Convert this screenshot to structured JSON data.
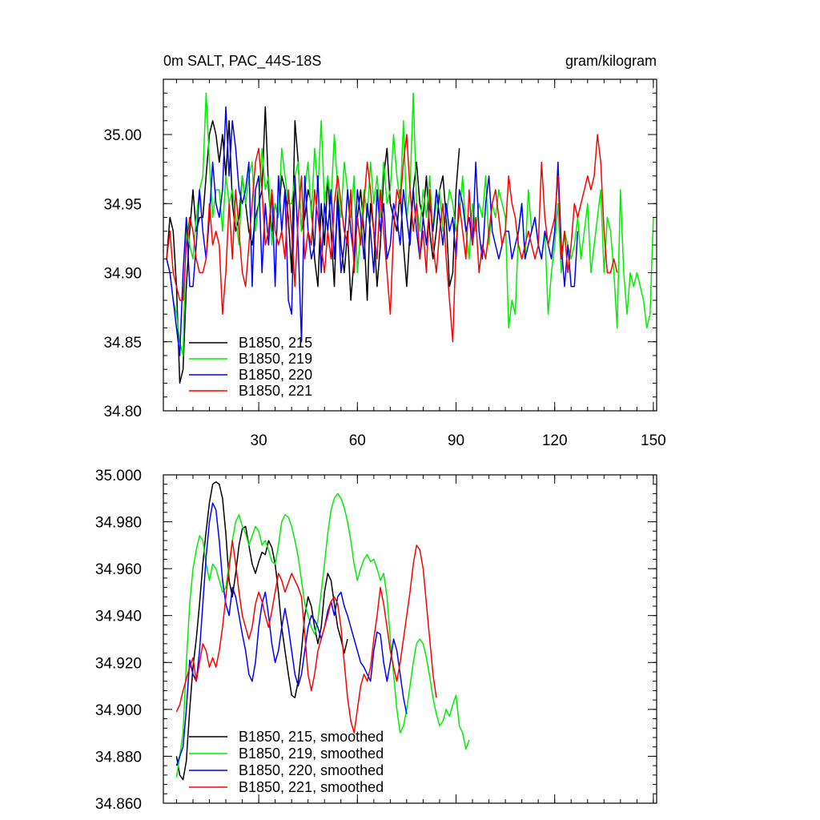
{
  "chart_data": [
    {
      "type": "line",
      "title": "0m SALT, PAC_44S-18S",
      "units": "gram/kilogram",
      "xlim": [
        1,
        151
      ],
      "ylim": [
        34.8,
        35.04
      ],
      "xticks": [
        30,
        60,
        90,
        120,
        150
      ],
      "xtick_labels": [
        "30",
        "60",
        "90",
        "120",
        "150"
      ],
      "yticks": [
        34.8,
        34.85,
        34.9,
        34.95,
        35.0
      ],
      "ytick_labels": [
        "34.80",
        "34.85",
        "34.90",
        "34.95",
        "35.00"
      ],
      "legend_position": "bottom-left",
      "series": [
        {
          "name": "B1850, 215",
          "color": "#000000",
          "x_start": 2,
          "values": [
            34.91,
            34.94,
            34.93,
            34.89,
            34.82,
            34.83,
            34.89,
            34.93,
            34.96,
            34.93,
            34.94,
            34.94,
            34.97,
            35.0,
            35.01,
            35.0,
            34.98,
            35.0,
            34.97,
            35.01,
            34.95,
            34.93,
            34.94,
            34.97,
            34.95,
            34.93,
            34.92,
            34.94,
            34.95,
            34.96,
            35.02,
            34.96,
            34.93,
            34.95,
            34.94,
            34.97,
            34.96,
            34.94,
            34.9,
            35.01,
            34.98,
            34.93,
            34.94,
            34.96,
            34.95,
            34.91,
            34.89,
            34.95,
            34.92,
            34.97,
            34.93,
            34.89,
            34.96,
            34.92,
            34.9,
            34.93,
            34.88,
            34.91,
            34.94,
            34.96,
            34.93,
            34.88,
            34.95,
            34.93,
            34.89,
            34.92,
            34.97,
            34.99,
            34.95,
            34.94,
            34.93,
            34.96,
            34.92,
            34.89,
            34.93,
            34.96,
            34.98,
            34.95,
            34.94,
            34.97,
            34.93,
            34.91,
            34.93,
            34.96,
            34.97,
            34.94,
            34.89,
            34.9,
            34.96,
            34.99
          ]
        },
        {
          "name": "B1850, 219",
          "color": "#00ee00",
          "x_start": 2,
          "values": [
            34.91,
            34.9,
            34.88,
            34.87,
            34.85,
            34.84,
            34.94,
            34.92,
            34.91,
            34.94,
            34.96,
            34.97,
            35.03,
            34.98,
            34.94,
            34.96,
            34.96,
            34.93,
            34.97,
            34.95,
            34.96,
            34.94,
            34.92,
            34.97,
            34.95,
            34.97,
            34.98,
            34.93,
            34.95,
            34.99,
            34.96,
            34.97,
            34.92,
            34.95,
            34.94,
            34.99,
            34.97,
            34.95,
            34.95,
            34.97,
            34.98,
            34.93,
            34.96,
            34.98,
            34.94,
            34.99,
            34.96,
            35.01,
            34.95,
            34.97,
            34.95,
            35.0,
            34.96,
            34.94,
            34.98,
            34.96,
            34.94,
            34.97,
            34.9,
            34.93,
            34.96,
            34.94,
            34.98,
            34.95,
            34.97,
            34.94,
            34.98,
            34.95,
            34.96,
            35.0,
            34.97,
            34.95,
            35.01,
            34.94,
            34.96,
            35.03,
            34.95,
            34.93,
            34.96,
            34.94,
            34.97,
            34.93,
            34.95,
            34.96,
            34.93,
            34.94,
            34.96,
            34.95,
            34.93,
            34.94,
            34.97,
            34.93,
            34.91,
            34.95,
            34.93,
            34.95,
            34.94,
            34.97,
            34.92,
            34.95,
            34.94,
            34.96,
            34.95,
            34.94,
            34.86,
            34.88,
            34.87,
            34.93,
            34.95,
            34.91,
            34.96,
            34.93,
            34.94,
            34.92,
            34.91,
            34.93,
            34.87,
            34.9,
            34.92,
            34.95,
            34.9,
            34.93,
            34.92,
            34.91,
            34.92,
            34.94,
            34.91,
            34.93,
            34.95,
            34.9,
            34.92,
            34.94,
            34.96,
            34.9,
            34.94,
            34.93,
            34.9,
            34.86,
            34.96,
            34.9,
            34.87,
            34.9,
            34.89,
            34.9,
            34.89,
            34.88,
            34.86,
            34.87,
            34.94
          ]
        },
        {
          "name": "B1850, 220",
          "color": "#0000ff",
          "x_start": 2,
          "values": [
            34.91,
            34.9,
            34.88,
            34.86,
            34.84,
            34.9,
            34.94,
            34.89,
            34.89,
            34.92,
            34.96,
            34.93,
            34.91,
            34.94,
            34.98,
            34.95,
            34.94,
            34.96,
            35.02,
            34.97,
            35.01,
            34.99,
            34.96,
            34.95,
            34.96,
            34.98,
            34.89,
            34.96,
            34.97,
            34.9,
            34.95,
            34.92,
            34.96,
            34.89,
            34.97,
            34.93,
            34.96,
            34.88,
            34.87,
            34.97,
            34.92,
            34.85,
            34.97,
            34.93,
            34.91,
            34.92,
            34.97,
            34.9,
            34.95,
            34.93,
            34.96,
            34.91,
            34.95,
            34.9,
            34.92,
            34.96,
            34.93,
            34.91,
            34.96,
            34.94,
            34.91,
            34.95,
            34.93,
            34.9,
            34.96,
            34.93,
            34.95,
            34.91,
            34.92,
            34.95,
            34.94,
            34.92,
            34.96,
            34.94,
            34.92,
            34.96,
            34.93,
            34.91,
            34.94,
            34.92,
            34.95,
            34.93,
            34.96,
            34.94,
            34.92,
            34.95,
            34.93,
            34.94,
            34.91,
            34.96,
            34.95,
            34.93,
            34.94,
            34.92,
            34.98,
            34.93,
            34.91,
            34.95,
            34.97,
            34.93,
            34.92,
            34.91,
            34.92,
            34.93,
            34.93,
            34.91,
            34.92,
            34.93,
            34.95,
            34.91,
            34.92,
            34.93,
            34.94,
            34.92,
            34.91,
            34.93,
            34.92,
            34.91,
            34.93,
            34.98,
            34.92,
            34.89,
            34.92,
            34.89,
            34.89,
            34.93
          ]
        },
        {
          "name": "B1850, 221",
          "color": "#ff0000",
          "x_start": 2,
          "values": [
            34.91,
            34.93,
            34.9,
            34.89,
            34.88,
            34.88,
            34.92,
            34.94,
            34.93,
            34.91,
            34.9,
            34.9,
            34.91,
            34.95,
            34.92,
            34.93,
            34.92,
            34.87,
            34.9,
            34.95,
            34.91,
            34.96,
            34.93,
            34.9,
            34.89,
            34.92,
            34.95,
            34.98,
            34.99,
            34.96,
            34.92,
            34.93,
            34.96,
            34.93,
            34.92,
            34.93,
            34.91,
            34.96,
            34.93,
            34.89,
            34.94,
            34.97,
            34.91,
            34.93,
            34.92,
            34.96,
            34.94,
            34.92,
            34.9,
            34.93,
            34.91,
            34.95,
            34.97,
            34.95,
            34.93,
            34.92,
            34.96,
            34.9,
            34.94,
            34.92,
            34.95,
            34.98,
            34.96,
            34.93,
            34.91,
            34.96,
            34.93,
            34.9,
            34.87,
            34.93,
            34.96,
            34.95,
            34.98,
            35.0,
            34.96,
            34.93,
            34.95,
            34.91,
            34.93,
            34.9,
            34.96,
            34.92,
            34.9,
            34.93,
            34.95,
            34.91,
            34.88,
            34.85,
            34.92,
            34.95,
            34.93,
            34.91,
            34.96,
            34.92,
            34.94,
            34.9,
            34.92,
            34.91,
            34.93,
            34.95,
            34.96,
            34.94,
            34.92,
            34.93,
            34.97,
            34.95,
            34.94,
            34.92,
            34.91,
            34.92,
            34.93,
            34.92,
            34.91,
            34.92,
            34.98,
            34.94,
            34.92,
            34.93,
            34.94,
            34.97,
            34.91,
            34.93,
            34.9,
            34.92,
            34.95,
            34.94,
            34.95,
            34.96,
            34.97,
            34.96,
            34.97,
            35.0,
            34.98,
            34.93,
            34.9,
            34.9,
            34.91,
            34.9
          ]
        }
      ]
    },
    {
      "type": "line",
      "title": "",
      "xlim": [
        1,
        151
      ],
      "ylim": [
        34.86,
        35.0
      ],
      "xticks": [
        30,
        60,
        90,
        120,
        150
      ],
      "xtick_labels": [],
      "yticks": [
        34.86,
        34.88,
        34.9,
        34.92,
        34.94,
        34.96,
        34.98,
        35.0
      ],
      "ytick_labels": [
        "34.860",
        "34.880",
        "34.900",
        "34.920",
        "34.940",
        "34.960",
        "34.980",
        "35.000"
      ],
      "legend_position": "bottom-left",
      "series": [
        {
          "name": "B1850, 215, smoothed",
          "color": "#000000",
          "x_start": 5,
          "values": [
            34.88,
            34.872,
            34.87,
            34.878,
            34.9,
            34.918,
            34.93,
            34.945,
            34.962,
            34.976,
            34.988,
            34.996,
            34.997,
            34.996,
            34.99,
            34.975,
            34.955,
            34.948,
            34.958,
            34.97,
            34.977,
            34.978,
            34.97,
            34.962,
            34.958,
            34.963,
            34.967,
            34.966,
            34.972,
            34.969,
            34.962,
            34.95,
            34.935,
            34.925,
            34.915,
            34.906,
            34.905,
            34.912,
            34.925,
            34.94,
            34.948,
            34.944,
            34.935,
            34.928,
            34.935,
            34.95,
            34.958,
            34.955,
            34.945,
            34.935,
            34.93,
            34.924,
            34.93
          ]
        },
        {
          "name": "B1850, 219, smoothed",
          "color": "#00ee00",
          "x_start": 5,
          "values": [
            34.871,
            34.88,
            34.89,
            34.92,
            34.945,
            34.96,
            34.968,
            34.974,
            34.972,
            34.962,
            34.955,
            34.962,
            34.96,
            34.955,
            34.95,
            34.952,
            34.962,
            34.972,
            34.98,
            34.983,
            34.978,
            34.975,
            34.97,
            34.974,
            34.978,
            34.976,
            34.97,
            34.972,
            34.968,
            34.963,
            34.962,
            34.97,
            34.98,
            34.983,
            34.982,
            34.978,
            34.972,
            34.965,
            34.955,
            34.945,
            34.94,
            34.935,
            34.932,
            34.938,
            34.95,
            34.962,
            34.975,
            34.985,
            34.99,
            34.992,
            34.99,
            34.986,
            34.98,
            34.972,
            34.962,
            34.955,
            34.96,
            34.964,
            34.966,
            34.963,
            34.964,
            34.96,
            34.955,
            34.958,
            34.948,
            34.93,
            34.915,
            34.9,
            34.89,
            34.893,
            34.9,
            34.91,
            34.92,
            34.928,
            34.93,
            34.928,
            34.922,
            34.914,
            34.905,
            34.898,
            34.893,
            34.895,
            34.9,
            34.897,
            34.902,
            34.906,
            34.893,
            34.89,
            34.883,
            34.887
          ]
        },
        {
          "name": "B1850, 220, smoothed",
          "color": "#0000ff",
          "x_start": 5,
          "values": [
            34.876,
            34.88,
            34.884,
            34.9,
            34.921,
            34.915,
            34.912,
            34.925,
            34.945,
            34.965,
            34.98,
            34.988,
            34.985,
            34.972,
            34.955,
            34.945,
            34.94,
            34.952,
            34.948,
            34.94,
            34.932,
            34.925,
            34.915,
            34.912,
            34.92,
            34.935,
            34.945,
            34.95,
            34.94,
            34.928,
            34.92,
            34.925,
            34.935,
            34.943,
            34.935,
            34.925,
            34.915,
            34.91,
            34.915,
            34.925,
            34.935,
            34.94,
            34.938,
            34.935,
            34.93,
            34.935,
            34.942,
            34.946,
            34.94,
            34.948,
            34.95,
            34.944,
            34.94,
            34.935,
            34.93,
            34.925,
            34.92,
            34.918,
            34.915,
            34.912,
            34.925,
            34.933,
            34.932,
            34.92,
            34.912,
            34.92,
            34.93,
            34.925,
            34.915,
            34.905,
            34.898
          ]
        },
        {
          "name": "B1850, 221, smoothed",
          "color": "#ff0000",
          "x_start": 5,
          "values": [
            34.899,
            34.902,
            34.908,
            34.913,
            34.918,
            34.922,
            34.912,
            34.92,
            34.928,
            34.925,
            34.918,
            34.922,
            34.918,
            34.925,
            34.935,
            34.948,
            34.96,
            34.972,
            34.962,
            34.95,
            34.94,
            34.935,
            34.93,
            34.935,
            34.945,
            34.95,
            34.946,
            34.94,
            34.935,
            34.942,
            34.95,
            34.958,
            34.955,
            34.95,
            34.954,
            34.958,
            34.955,
            34.952,
            34.948,
            34.932,
            34.915,
            34.908,
            34.915,
            34.925,
            34.93,
            34.935,
            34.94,
            34.946,
            34.948,
            34.945,
            34.935,
            34.92,
            34.905,
            34.895,
            34.89,
            34.9,
            34.91,
            34.915,
            34.912,
            34.918,
            34.93,
            34.94,
            34.952,
            34.945,
            34.935,
            34.925,
            34.918,
            34.912,
            34.92,
            34.93,
            34.94,
            34.95,
            34.962,
            34.97,
            34.968,
            34.96,
            34.945,
            34.93,
            34.915,
            34.905
          ]
        }
      ]
    }
  ]
}
